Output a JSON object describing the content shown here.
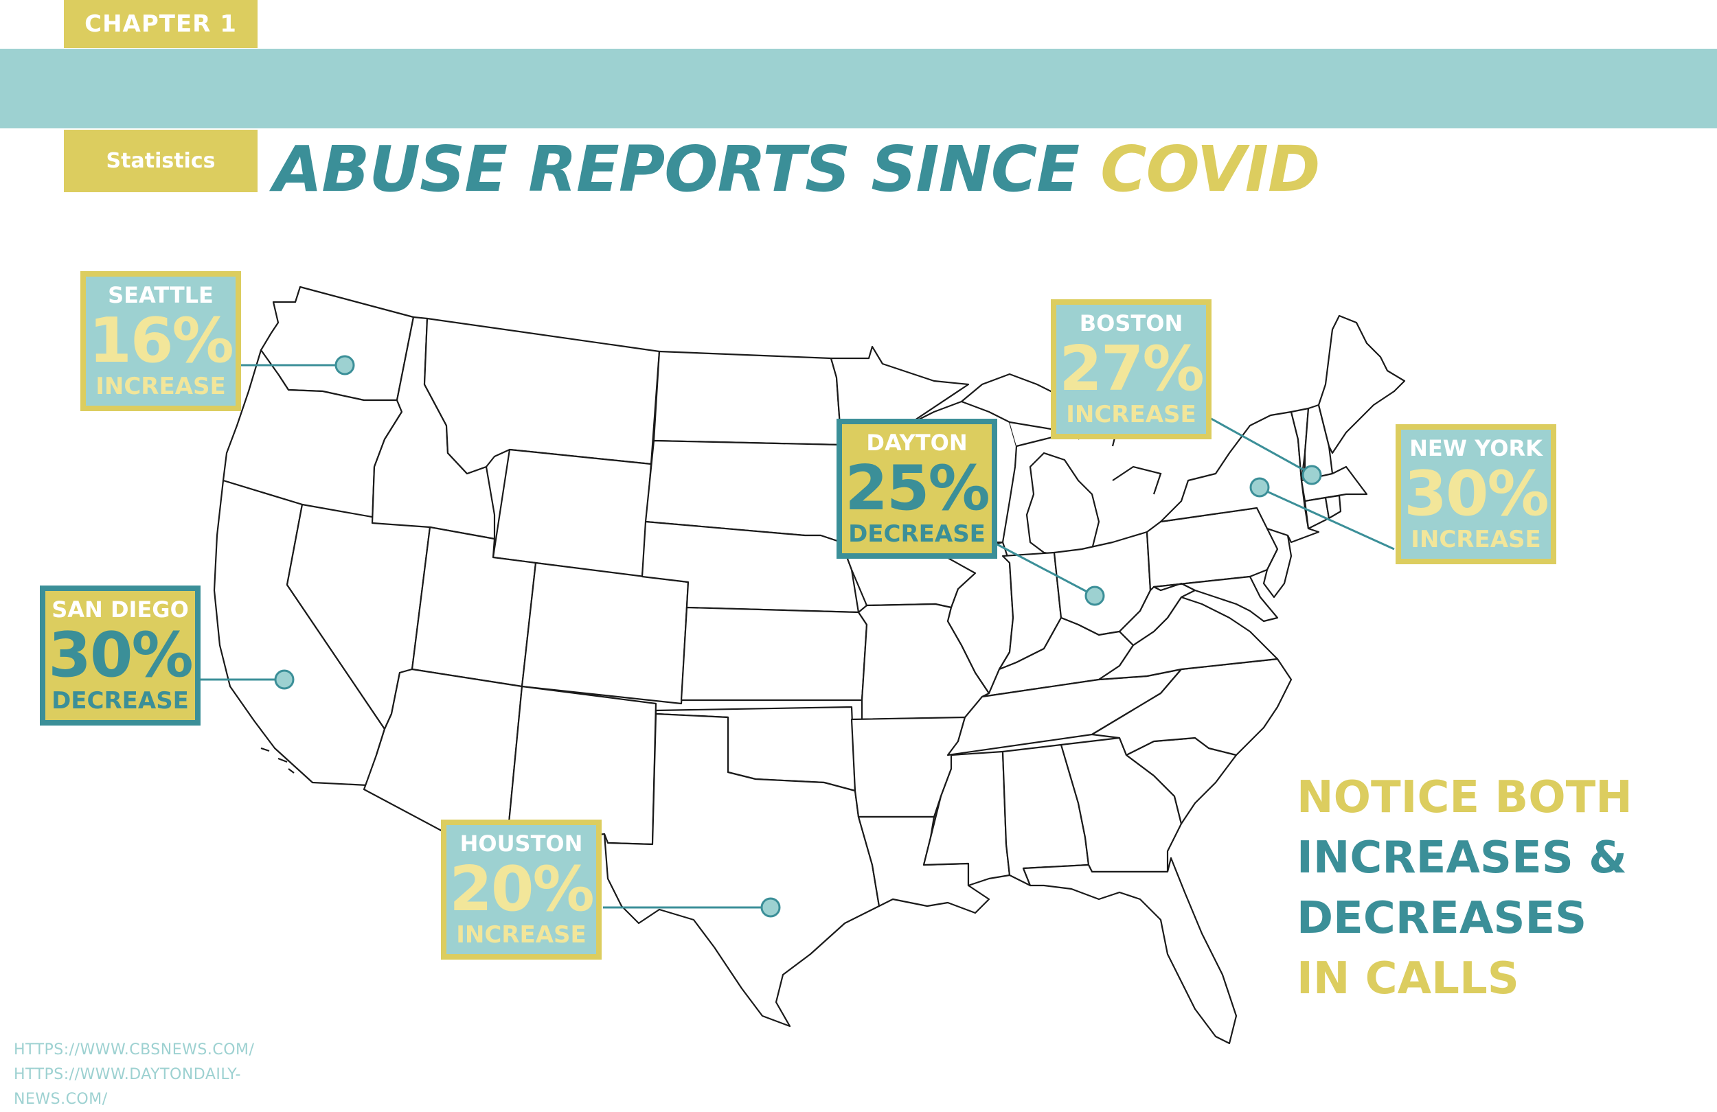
{
  "header": {
    "chapter": "CHAPTER 1",
    "section": "Statistics",
    "title_main": "ABUSE REPORTS SINCE ",
    "title_accent": "COVID"
  },
  "colors": {
    "teal": "#3b8f98",
    "light_teal": "#9dd1d1",
    "yellow": "#dccd5f",
    "light_yellow": "#f2e69a"
  },
  "callouts": {
    "seattle": {
      "city": "SEATTLE",
      "percent": "16%",
      "change": "INCREASE",
      "direction": "increase"
    },
    "boston": {
      "city": "BOSTON",
      "percent": "27%",
      "change": "INCREASE",
      "direction": "increase"
    },
    "dayton": {
      "city": "DAYTON",
      "percent": "25%",
      "change": "DECREASE",
      "direction": "decrease"
    },
    "new_york": {
      "city": "NEW YORK",
      "percent": "30%",
      "change": "INCREASE",
      "direction": "increase"
    },
    "san_diego": {
      "city": "SAN DIEGO",
      "percent": "30%",
      "change": "DECREASE",
      "direction": "decrease"
    },
    "houston": {
      "city": "HOUSTON",
      "percent": "20%",
      "change": "INCREASE",
      "direction": "increase"
    }
  },
  "notice": {
    "line1": "NOTICE BOTH",
    "line2": "INCREASES &",
    "line3": "DECREASES",
    "line4": "IN CALLS"
  },
  "sources": {
    "line1": "HTTPS://WWW.CBSNEWS.COM/",
    "line2": "HTTPS://WWW.DAYTONDAILY-",
    "line3": "NEWS.COM/"
  }
}
